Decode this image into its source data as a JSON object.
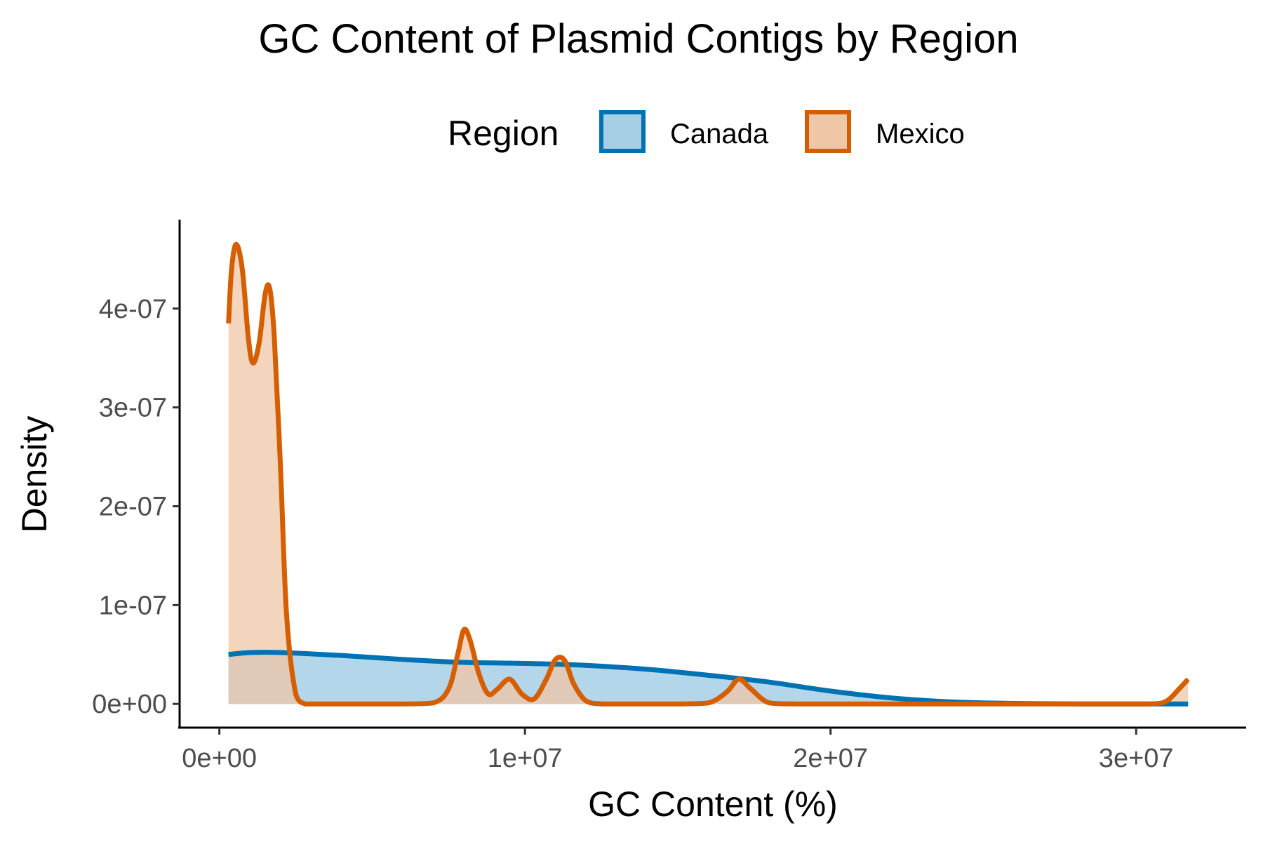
{
  "chart_data": {
    "type": "area",
    "title": "GC Content of Plasmid Contigs by Region",
    "xlabel": "GC Content (%)",
    "ylabel": "Density",
    "legend": {
      "title": "Region",
      "position": "top"
    },
    "xlim": [
      -1300000,
      33600000
    ],
    "ylim": [
      -2.4e-08,
      4.9e-07
    ],
    "x_ticks": [
      {
        "value": 0,
        "label": "0e+00"
      },
      {
        "value": 10000000,
        "label": "1e+07"
      },
      {
        "value": 20000000,
        "label": "2e+07"
      },
      {
        "value": 30000000,
        "label": "3e+07"
      }
    ],
    "y_ticks": [
      {
        "value": 0,
        "label": "0e+00"
      },
      {
        "value": 1e-07,
        "label": "1e-07"
      },
      {
        "value": 2e-07,
        "label": "2e-07"
      },
      {
        "value": 3e-07,
        "label": "3e-07"
      },
      {
        "value": 4e-07,
        "label": "4e-07"
      }
    ],
    "grid": false,
    "series": [
      {
        "name": "Canada",
        "line_color": "#0072B2",
        "fill_color": "#a6cfe6",
        "fill_opacity": 0.85,
        "x": [
          300000,
          1000000,
          2000000,
          4000000,
          6000000,
          8000000,
          10000000,
          12000000,
          14000000,
          16000000,
          18000000,
          20000000,
          22000000,
          24000000,
          26000000,
          28000000,
          30000000,
          31700000
        ],
        "y": [
          5e-08,
          5.2e-08,
          5.2e-08,
          4.9e-08,
          4.5e-08,
          4.2e-08,
          4.1e-08,
          3.9e-08,
          3.5e-08,
          2.9e-08,
          2.2e-08,
          1.3e-08,
          6e-09,
          2e-09,
          5e-10,
          0,
          0,
          0
        ]
      },
      {
        "name": "Mexico",
        "line_color": "#D55E00",
        "fill_color": "#efc6a6",
        "fill_opacity": 0.75,
        "x": [
          300000,
          400000,
          550000,
          750000,
          950000,
          1100000,
          1300000,
          1500000,
          1650000,
          1800000,
          2000000,
          2200000,
          2500000,
          2800000,
          3000000,
          4000000,
          6000000,
          7000000,
          7500000,
          7800000,
          8000000,
          8200000,
          8500000,
          8800000,
          9100000,
          9500000,
          9900000,
          10300000,
          10700000,
          11000000,
          11300000,
          11600000,
          12000000,
          12500000,
          13000000,
          15000000,
          16000000,
          16600000,
          17000000,
          17400000,
          18000000,
          19000000,
          22000000,
          26000000,
          29000000,
          30500000,
          31000000,
          31400000,
          31700000
        ],
        "y": [
          3.85e-07,
          4.4e-07,
          4.65e-07,
          4.4e-07,
          3.7e-07,
          3.45e-07,
          3.65e-07,
          4.15e-07,
          4.2e-07,
          3.7e-07,
          2.4e-07,
          9e-08,
          1e-08,
          0,
          0,
          0,
          0,
          1e-09,
          1.5e-08,
          5e-08,
          7.5e-08,
          6.5e-08,
          3e-08,
          1e-08,
          1.5e-08,
          2.5e-08,
          1e-08,
          5e-09,
          2.5e-08,
          4.5e-08,
          4.4e-08,
          2e-08,
          3e-09,
          0,
          0,
          0,
          1e-09,
          1.2e-08,
          2.5e-08,
          1.5e-08,
          1e-09,
          0,
          0,
          0,
          0,
          0,
          3e-09,
          1.5e-08,
          2.5e-08
        ]
      }
    ]
  }
}
